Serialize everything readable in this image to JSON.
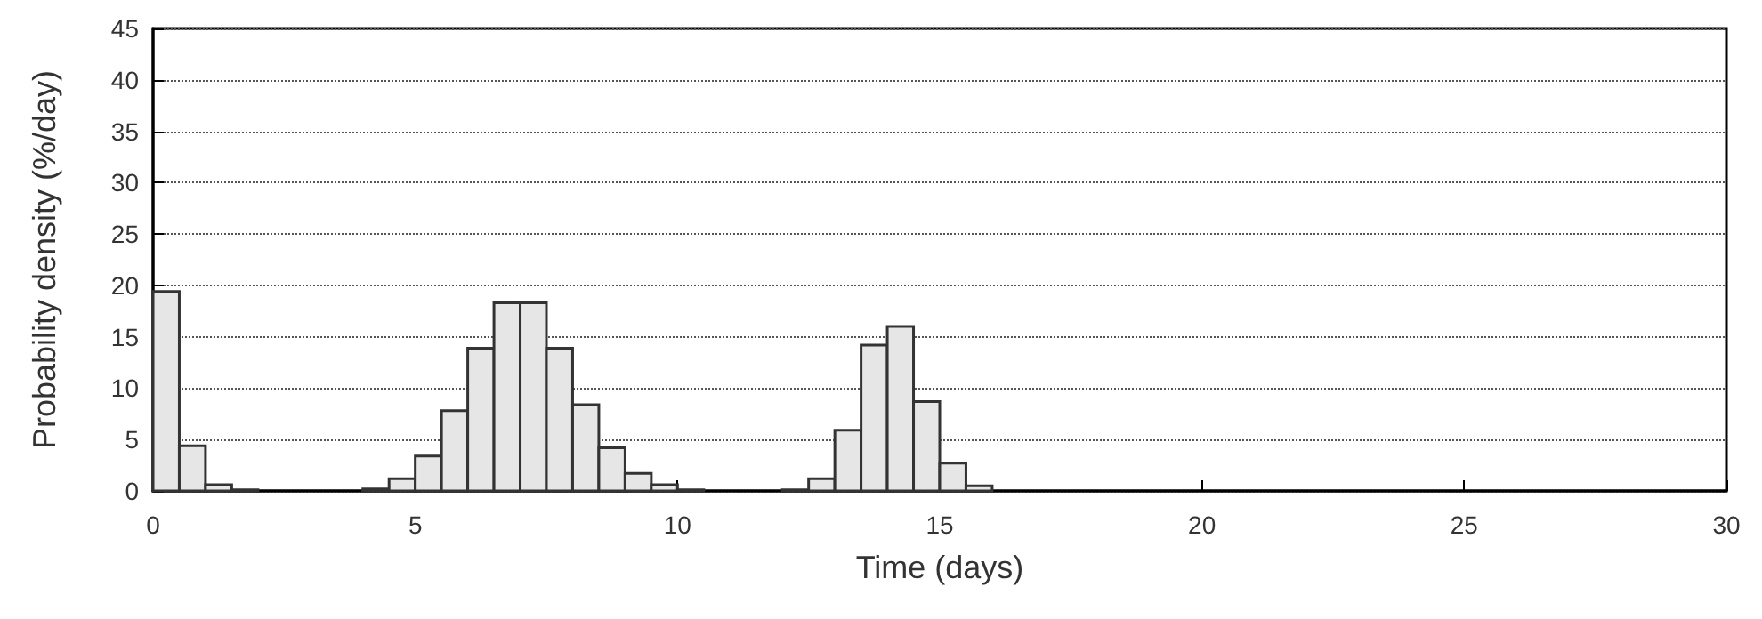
{
  "chart_data": {
    "type": "histogram",
    "xlabel": "Time (days)",
    "ylabel": "Probability density (%/day)",
    "bins": [
      0,
      0.5,
      1,
      1.5,
      2,
      2.5,
      3,
      3.5,
      4,
      4.5,
      5,
      5.5,
      6,
      6.5,
      7,
      7.5,
      8,
      8.5,
      9,
      9.5,
      10,
      10.5,
      11,
      11.5,
      12,
      12.5,
      13,
      13.5,
      14,
      14.5,
      15,
      15.5,
      16,
      16.5,
      17,
      17.5,
      18,
      18.5,
      19,
      19.5,
      20,
      20.5,
      21,
      21.5,
      22,
      22.5,
      23,
      23.5,
      24,
      24.5,
      25,
      25.5,
      26,
      26.5,
      27,
      27.5,
      28,
      28.5,
      29,
      29.5,
      30
    ],
    "values": [
      19.4,
      4.4,
      0.6,
      0.1,
      0,
      0,
      0,
      0,
      0.2,
      1.2,
      3.4,
      7.8,
      13.9,
      18.3,
      18.3,
      13.9,
      8.4,
      4.2,
      1.7,
      0.6,
      0.1,
      0,
      0,
      0,
      0.1,
      1.2,
      5.9,
      14.2,
      16.0,
      8.7,
      2.7,
      0.5,
      0,
      0,
      0,
      0,
      0,
      0,
      0,
      0,
      0,
      0,
      0,
      0,
      0,
      0,
      0,
      0,
      0,
      0,
      0,
      0,
      0,
      0,
      0,
      0,
      0,
      0,
      0,
      0
    ],
    "color": "#e6e6e6",
    "xlim": [
      0,
      30
    ],
    "xticks": [
      0,
      5,
      10,
      15,
      20,
      25,
      30
    ],
    "ylim": [
      0,
      45
    ],
    "yticks": [
      0,
      5,
      10,
      15,
      20,
      25,
      30,
      35,
      40,
      45
    ],
    "grid": "y"
  }
}
